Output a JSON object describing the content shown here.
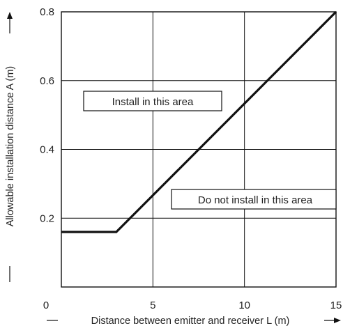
{
  "chart_data": {
    "type": "line",
    "xlabel": "Distance between emitter and receiver L (m)",
    "ylabel": "Allowable installation distance A (m)",
    "xlim": [
      0,
      15
    ],
    "ylim": [
      0,
      0.8
    ],
    "x_ticks": [
      "0",
      "5",
      "10",
      "15"
    ],
    "y_ticks": [
      "0.2",
      "0.4",
      "0.6",
      "0.8"
    ],
    "grid": true,
    "series": [
      {
        "x": [
          0,
          3,
          15
        ],
        "y": [
          0.16,
          0.16,
          0.8
        ]
      }
    ],
    "annotations": {
      "install": "Install in this area",
      "do_not_install": "Do not install in this area"
    }
  }
}
